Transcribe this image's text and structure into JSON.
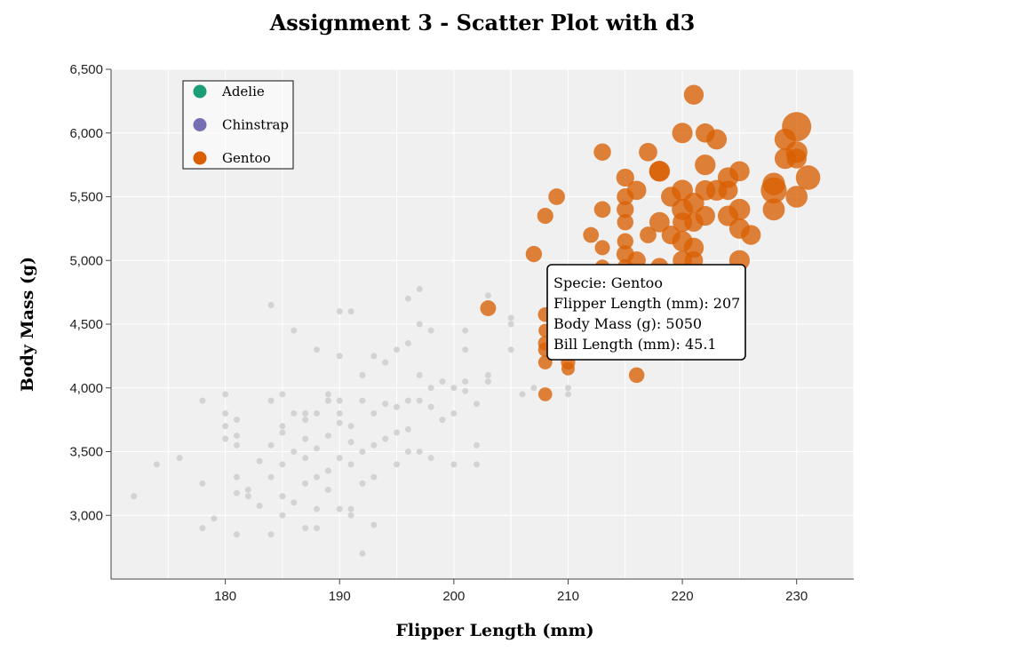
{
  "chart_data": {
    "type": "scatter",
    "title": "Assignment 3 - Scatter Plot with d3",
    "xlabel": "Flipper Length (mm)",
    "ylabel": "Body Mass (g)",
    "xlim": [
      170,
      235
    ],
    "ylim": [
      2500,
      6500
    ],
    "x_ticks": [
      180,
      190,
      200,
      210,
      220,
      230
    ],
    "y_ticks": [
      3000,
      3500,
      4000,
      4500,
      5000,
      5500,
      6000,
      6500
    ],
    "y_tick_labels": [
      "3,000",
      "3,500",
      "4,000",
      "4,500",
      "5,000",
      "5,500",
      "6,000",
      "6,500"
    ],
    "grid": true,
    "background_color": "#f0f0f0",
    "inactive_color": "#d3d3d3",
    "legend_position": "top-left",
    "legend": [
      {
        "name": "Adelie",
        "color": "#1b9e77"
      },
      {
        "name": "Chinstrap",
        "color": "#7570b3"
      },
      {
        "name": "Gentoo",
        "color": "#d95f02"
      }
    ],
    "series": [
      {
        "name": "Gentoo",
        "color": "#d95f02",
        "active": true,
        "points": [
          [
            221,
            6300,
            49.0
          ],
          [
            230,
            6050,
            59.6
          ],
          [
            220,
            6000,
            49.8
          ],
          [
            222,
            6000,
            48.5
          ],
          [
            223,
            5950,
            49.6
          ],
          [
            229,
            5950,
            50.8
          ],
          [
            213,
            5850,
            46.2
          ],
          [
            217,
            5850,
            47.5
          ],
          [
            230,
            5850,
            51.1
          ],
          [
            218,
            5700,
            50.2
          ],
          [
            218,
            5700,
            49.5
          ],
          [
            225,
            5700,
            49.4
          ],
          [
            229,
            5800,
            50.4
          ],
          [
            230,
            5800,
            49.2
          ],
          [
            222,
            5750,
            50.0
          ],
          [
            215,
            5650,
            47.0
          ],
          [
            216,
            5550,
            48.4
          ],
          [
            223,
            5550,
            50.1
          ],
          [
            224,
            5650,
            50.0
          ],
          [
            228,
            5600,
            52.1
          ],
          [
            228,
            5550,
            55.9
          ],
          [
            231,
            5650,
            54.3
          ],
          [
            219,
            5500,
            49.1
          ],
          [
            220,
            5550,
            50.5
          ],
          [
            221,
            5450,
            50.0
          ],
          [
            222,
            5550,
            49.5
          ],
          [
            224,
            5550,
            48.6
          ],
          [
            230,
            5500,
            51.3
          ],
          [
            209,
            5500,
            45.4
          ],
          [
            215,
            5500,
            45.8
          ],
          [
            208,
            5350,
            44.9
          ],
          [
            213,
            5400,
            45.5
          ],
          [
            215,
            5400,
            46.0
          ],
          [
            220,
            5400,
            50.5
          ],
          [
            222,
            5350,
            49.0
          ],
          [
            224,
            5350,
            49.8
          ],
          [
            225,
            5400,
            50.8
          ],
          [
            228,
            5400,
            51.5
          ],
          [
            220,
            5300,
            48.7
          ],
          [
            218,
            5300,
            49.6
          ],
          [
            215,
            5300,
            45.2
          ],
          [
            217,
            5200,
            45.5
          ],
          [
            219,
            5200,
            47.8
          ],
          [
            221,
            5300,
            48.2
          ],
          [
            225,
            5250,
            49.7
          ],
          [
            226,
            5200,
            49.0
          ],
          [
            212,
            5200,
            44.5
          ],
          [
            213,
            5100,
            43.8
          ],
          [
            215,
            5150,
            45.1
          ],
          [
            220,
            5150,
            49.8
          ],
          [
            221,
            5100,
            49.2
          ],
          [
            207,
            5050,
            45.1
          ],
          [
            215,
            5050,
            46.5
          ],
          [
            216,
            5000,
            47.2
          ],
          [
            220,
            5000,
            48.4
          ],
          [
            221,
            5000,
            47.5
          ],
          [
            225,
            5000,
            49.9
          ],
          [
            218,
            4950,
            46.8
          ],
          [
            215,
            4950,
            44.1
          ],
          [
            213,
            4950,
            43.2
          ],
          [
            203,
            4625,
            44.6
          ],
          [
            208,
            4575,
            43.3
          ],
          [
            208,
            4450,
            42.0
          ],
          [
            208,
            4350,
            43.1
          ],
          [
            208,
            4300,
            42.8
          ],
          [
            208,
            4200,
            42.6
          ],
          [
            210,
            4200,
            42.9
          ],
          [
            210,
            4150,
            41.8
          ],
          [
            216,
            4100,
            44.3
          ],
          [
            208,
            3950,
            42.4
          ]
        ]
      },
      {
        "name": "Adelie / Chinstrap",
        "color": "#d3d3d3",
        "active": false,
        "points": [
          [
            172,
            3150
          ],
          [
            174,
            3400
          ],
          [
            176,
            3450
          ],
          [
            178,
            3900
          ],
          [
            178,
            3250
          ],
          [
            178,
            2900
          ],
          [
            179,
            2975
          ],
          [
            180,
            3950
          ],
          [
            180,
            3800
          ],
          [
            180,
            3700
          ],
          [
            180,
            3600
          ],
          [
            181,
            3750
          ],
          [
            181,
            3625
          ],
          [
            181,
            3550
          ],
          [
            181,
            3300
          ],
          [
            181,
            3175
          ],
          [
            181,
            2850
          ],
          [
            182,
            3200
          ],
          [
            182,
            3150
          ],
          [
            183,
            3425
          ],
          [
            183,
            3075
          ],
          [
            184,
            4650
          ],
          [
            184,
            3900
          ],
          [
            184,
            3550
          ],
          [
            184,
            3300
          ],
          [
            184,
            2850
          ],
          [
            185,
            3950
          ],
          [
            185,
            3700
          ],
          [
            185,
            3650
          ],
          [
            185,
            3400
          ],
          [
            185,
            3150
          ],
          [
            185,
            3000
          ],
          [
            186,
            4450
          ],
          [
            186,
            3800
          ],
          [
            186,
            3500
          ],
          [
            186,
            3100
          ],
          [
            187,
            3800
          ],
          [
            187,
            3750
          ],
          [
            187,
            3600
          ],
          [
            187,
            3450
          ],
          [
            187,
            3250
          ],
          [
            187,
            2900
          ],
          [
            188,
            4300
          ],
          [
            188,
            3800
          ],
          [
            188,
            3525
          ],
          [
            188,
            3300
          ],
          [
            188,
            3050
          ],
          [
            188,
            2900
          ],
          [
            189,
            3950
          ],
          [
            189,
            3900
          ],
          [
            189,
            3625
          ],
          [
            189,
            3350
          ],
          [
            189,
            3200
          ],
          [
            190,
            4600
          ],
          [
            190,
            4250
          ],
          [
            190,
            3900
          ],
          [
            190,
            3800
          ],
          [
            190,
            3725
          ],
          [
            190,
            3450
          ],
          [
            190,
            3050
          ],
          [
            191,
            4600
          ],
          [
            191,
            3700
          ],
          [
            191,
            3575
          ],
          [
            191,
            3400
          ],
          [
            191,
            3050
          ],
          [
            191,
            3000
          ],
          [
            192,
            4100
          ],
          [
            192,
            3900
          ],
          [
            192,
            3500
          ],
          [
            192,
            3250
          ],
          [
            192,
            2700
          ],
          [
            193,
            4250
          ],
          [
            193,
            3800
          ],
          [
            193,
            3550
          ],
          [
            193,
            3300
          ],
          [
            193,
            2925
          ],
          [
            194,
            4200
          ],
          [
            194,
            3875
          ],
          [
            194,
            3600
          ],
          [
            195,
            4300
          ],
          [
            195,
            3850
          ],
          [
            195,
            3650
          ],
          [
            195,
            3400
          ],
          [
            196,
            4700
          ],
          [
            196,
            4350
          ],
          [
            196,
            3900
          ],
          [
            196,
            3675
          ],
          [
            196,
            3500
          ],
          [
            197,
            4775
          ],
          [
            197,
            4500
          ],
          [
            197,
            4100
          ],
          [
            197,
            3900
          ],
          [
            197,
            3500
          ],
          [
            198,
            4450
          ],
          [
            198,
            4000
          ],
          [
            198,
            3850
          ],
          [
            198,
            3450
          ],
          [
            199,
            4050
          ],
          [
            199,
            3750
          ],
          [
            200,
            4000
          ],
          [
            200,
            3800
          ],
          [
            200,
            3400
          ],
          [
            201,
            4450
          ],
          [
            201,
            4300
          ],
          [
            201,
            4050
          ],
          [
            201,
            3975
          ],
          [
            202,
            3875
          ],
          [
            202,
            3550
          ],
          [
            202,
            3400
          ],
          [
            203,
            4725
          ],
          [
            203,
            4100
          ],
          [
            203,
            4050
          ],
          [
            205,
            4550
          ],
          [
            205,
            4500
          ],
          [
            205,
            4300
          ],
          [
            206,
            3950
          ],
          [
            207,
            4000
          ],
          [
            210,
            4000
          ],
          [
            210,
            3950
          ]
        ]
      }
    ],
    "tooltip": {
      "lines": [
        "Specie: Gentoo",
        "Flipper Length (mm): 207",
        "Body Mass (g): 5050",
        "Bill Length (mm): 45.1"
      ]
    }
  }
}
